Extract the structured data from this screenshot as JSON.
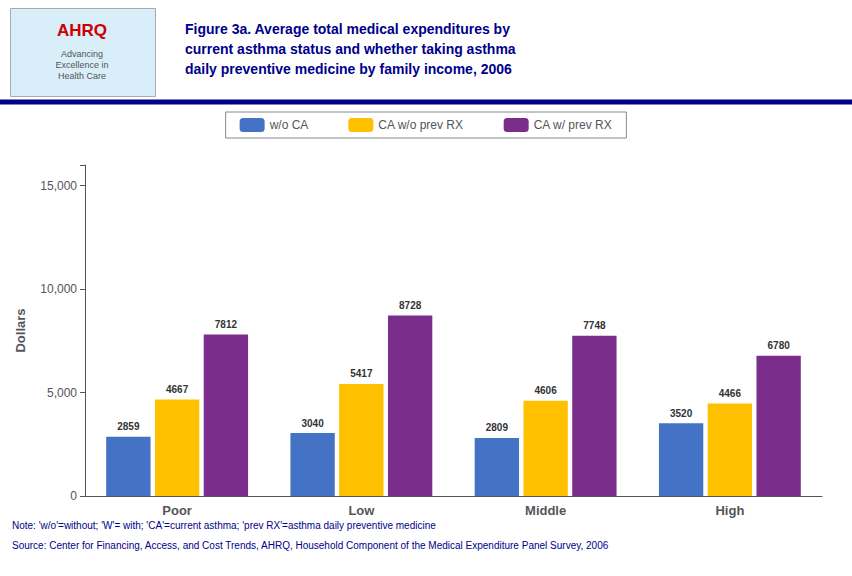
{
  "chart_data": {
    "type": "bar",
    "title": "Figure 3a. Average total medical expenditures by\ncurrent asthma status and whether taking asthma\ndaily preventive medicine by family income, 2006",
    "ylabel": "Dollars",
    "categories": [
      "Poor",
      "Low",
      "Middle",
      "High"
    ],
    "series": [
      {
        "name": "w/o CA",
        "color": "#4472C4",
        "values": [
          2859,
          3040,
          2809,
          3520
        ]
      },
      {
        "name": "CA w/o prev RX",
        "color": "#FFC000",
        "values": [
          4667,
          5417,
          4606,
          4466
        ]
      },
      {
        "name": "CA w/ prev RX",
        "color": "#7B2D8B",
        "values": [
          7812,
          8728,
          7748,
          6780
        ]
      }
    ],
    "ylim": [
      0,
      16000
    ],
    "yticks": [
      0,
      {
        "value": 5000,
        "label": "5,000"
      },
      {
        "value": 10000,
        "label": "10,000"
      },
      {
        "value": 15000,
        "label": "15,000"
      }
    ],
    "grid": false,
    "legend": "top",
    "data_labels": true,
    "annotations": [
      "AHRQ",
      "Advancing\nExcellence in\nHealth Care",
      "Note: 'w/o'=without; 'W'= with; 'CA'=current asthma; 'prev RX'=asthma daily preventive medicine",
      "Source: Center for Financing, Access, and Cost Trends, AHRQ, Household Component of the Medical Expenditure Panel Survey, 2006"
    ]
  }
}
